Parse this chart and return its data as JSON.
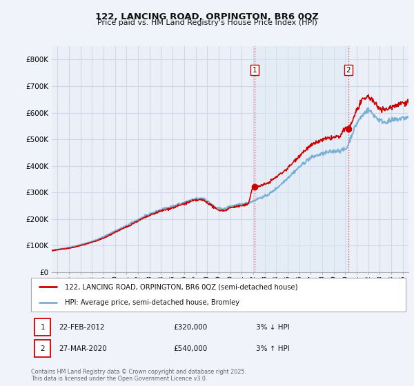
{
  "title_line1": "122, LANCING ROAD, ORPINGTON, BR6 0QZ",
  "title_line2": "Price paid vs. HM Land Registry's House Price Index (HPI)",
  "legend_entries": [
    "122, LANCING ROAD, ORPINGTON, BR6 0QZ (semi-detached house)",
    "HPI: Average price, semi-detached house, Bromley"
  ],
  "sale1": {
    "label": "1",
    "date": "22-FEB-2012",
    "price": "£320,000",
    "hpi_note": "3% ↓ HPI"
  },
  "sale2": {
    "label": "2",
    "date": "27-MAR-2020",
    "price": "£540,000",
    "hpi_note": "3% ↑ HPI"
  },
  "footnote": "Contains HM Land Registry data © Crown copyright and database right 2025.\nThis data is licensed under the Open Government Licence v3.0.",
  "background_color": "#f0f4fa",
  "plot_bg_color": "#eaeff8",
  "shade_color": "#dce8f5",
  "grid_color": "#d0d8e8",
  "hpi_line_color": "#7ab0d4",
  "price_line_color": "#cc0000",
  "dashed_line_color": "#dd4444",
  "ylim": [
    0,
    850000
  ],
  "yticks": [
    0,
    100000,
    200000,
    300000,
    400000,
    500000,
    600000,
    700000,
    800000
  ],
  "ytick_labels": [
    "£0",
    "£100K",
    "£200K",
    "£300K",
    "£400K",
    "£500K",
    "£600K",
    "£700K",
    "£800K"
  ],
  "xlim_start": 1994.5,
  "xlim_end": 2025.5,
  "xticks": [
    1995,
    1996,
    1997,
    1998,
    1999,
    2000,
    2001,
    2002,
    2003,
    2004,
    2005,
    2006,
    2007,
    2008,
    2009,
    2010,
    2011,
    2012,
    2013,
    2014,
    2015,
    2016,
    2017,
    2018,
    2019,
    2020,
    2021,
    2022,
    2023,
    2024,
    2025
  ],
  "sale1_x": 2012.12,
  "sale1_y": 320000,
  "sale2_x": 2020.25,
  "sale2_y": 540000
}
